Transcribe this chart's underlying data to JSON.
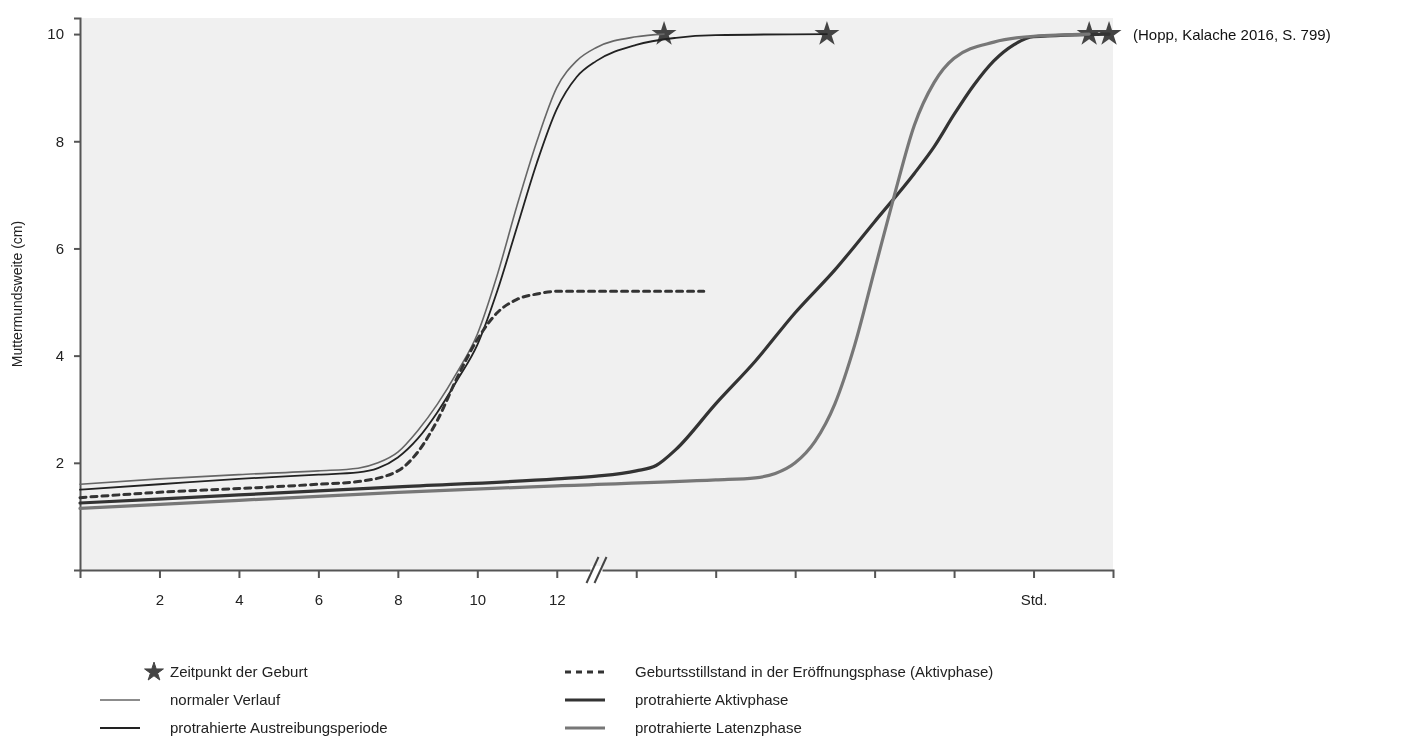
{
  "chart_data": {
    "type": "line",
    "ylabel": "Muttermundsweite (cm)",
    "xlim": [
      0,
      26
    ],
    "ylim": [
      0,
      10.3
    ],
    "xticks": [
      2,
      4,
      6,
      8,
      10,
      12,
      {
        "value": 14,
        "label": null
      },
      {
        "value": 16,
        "label": null
      },
      {
        "value": 18,
        "label": null
      },
      {
        "value": 20,
        "label": null
      },
      {
        "value": 22,
        "label": null
      },
      {
        "value": 24,
        "label": "Std."
      }
    ],
    "yticks": [
      2,
      4,
      6,
      8,
      10
    ],
    "grid": false,
    "legend": "bottom",
    "annotations": [
      "(Hopp, Kalache 2016, S. 799)"
    ],
    "series": [
      {
        "name": "Zeitpunkt der Geburt",
        "type": "scatter",
        "marker": "star",
        "color": "#444444",
        "x": [
          14.7,
          18.8,
          25.4,
          25.9
        ],
        "values": [
          10,
          10,
          10,
          10
        ]
      },
      {
        "name": "normaler Verlauf",
        "color": "#666666",
        "line_style": "solid",
        "x": [
          0,
          2,
          4,
          6,
          7,
          7.5,
          8,
          8.5,
          9,
          9.5,
          10,
          10.5,
          11,
          11.5,
          12,
          12.5,
          13,
          14,
          14.7
        ],
        "values": [
          1.6,
          1.7,
          1.78,
          1.85,
          1.9,
          2.0,
          2.2,
          2.6,
          3.1,
          3.7,
          4.4,
          5.5,
          6.8,
          8.0,
          9.0,
          9.5,
          9.75,
          9.95,
          10
        ]
      },
      {
        "name": "protrahierte Austreibungsperiode",
        "color": "#222222",
        "line_style": "solid",
        "x": [
          0,
          2,
          4,
          6,
          7,
          7.5,
          8,
          8.5,
          9,
          9.5,
          10,
          10.5,
          11,
          11.5,
          12,
          12.5,
          13,
          14,
          15,
          16,
          18.8
        ],
        "values": [
          1.5,
          1.6,
          1.7,
          1.78,
          1.82,
          1.9,
          2.1,
          2.45,
          2.95,
          3.55,
          4.2,
          5.2,
          6.4,
          7.6,
          8.6,
          9.2,
          9.5,
          9.8,
          9.93,
          9.98,
          10
        ]
      },
      {
        "name": "Geburtsstillstand in der Eröffnungsphase (Aktivphase)",
        "color": "#333333",
        "line_style": "dashed",
        "x": [
          0,
          2,
          4,
          6,
          7,
          8,
          8.5,
          9,
          9.5,
          10,
          10.5,
          11,
          11.5,
          12,
          15.7
        ],
        "values": [
          1.35,
          1.45,
          1.52,
          1.6,
          1.65,
          1.85,
          2.2,
          2.8,
          3.6,
          4.3,
          4.8,
          5.05,
          5.15,
          5.2,
          5.2
        ]
      },
      {
        "name": "protrahierte Aktivphase",
        "color": "#333333",
        "line_style": "solid",
        "x": [
          0,
          4,
          8,
          12,
          13,
          14,
          14.5,
          15,
          16,
          17,
          18,
          19,
          20,
          21,
          21.5,
          22,
          22.5,
          23,
          23.5,
          24,
          25.9
        ],
        "values": [
          1.25,
          1.4,
          1.55,
          1.7,
          1.75,
          1.85,
          1.95,
          2.25,
          3.1,
          3.9,
          4.8,
          5.6,
          6.5,
          7.4,
          7.9,
          8.5,
          9.05,
          9.5,
          9.8,
          9.95,
          10
        ]
      },
      {
        "name": "protrahierte Latenzphase",
        "color": "#777777",
        "line_style": "solid",
        "x": [
          0,
          4,
          8,
          12,
          16,
          17,
          17.5,
          18,
          18.5,
          19,
          19.5,
          20,
          20.5,
          21,
          21.5,
          22,
          23,
          24,
          25.4
        ],
        "values": [
          1.15,
          1.3,
          1.45,
          1.57,
          1.68,
          1.72,
          1.8,
          2.0,
          2.4,
          3.1,
          4.2,
          5.6,
          7.0,
          8.3,
          9.1,
          9.55,
          9.85,
          9.96,
          10
        ]
      }
    ]
  }
}
